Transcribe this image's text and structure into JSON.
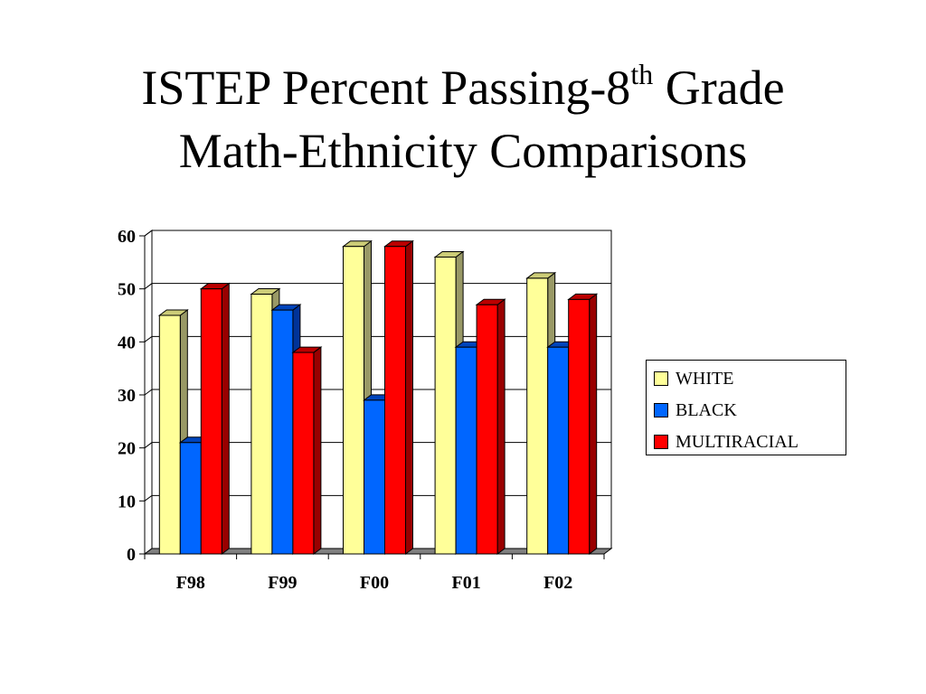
{
  "title": {
    "line1_main": "ISTEP Percent Passing-8",
    "line1_sup": "th",
    "line1_end": " Grade",
    "line2": "Math-Ethnicity Comparisons"
  },
  "colors": {
    "white": "#ffff99",
    "black": "#0066ff",
    "multiracial": "#ff0000",
    "gridline": "#000000"
  },
  "chart_data": {
    "type": "bar",
    "title": "ISTEP Percent Passing-8th Grade Math-Ethnicity Comparisons",
    "categories": [
      "F98",
      "F99",
      "F00",
      "F01",
      "F02"
    ],
    "series": [
      {
        "name": "WHITE",
        "values": [
          45,
          49,
          58,
          56,
          52
        ]
      },
      {
        "name": "BLACK",
        "values": [
          21,
          46,
          29,
          39,
          39
        ]
      },
      {
        "name": "MULTIRACIAL",
        "values": [
          50,
          38,
          58,
          47,
          48
        ]
      }
    ],
    "ylim": [
      0,
      60
    ],
    "yticks": [
      0,
      10,
      20,
      30,
      40,
      50,
      60
    ],
    "xlabel": "",
    "ylabel": "",
    "grid": true,
    "legend": "right",
    "style": "3d"
  }
}
